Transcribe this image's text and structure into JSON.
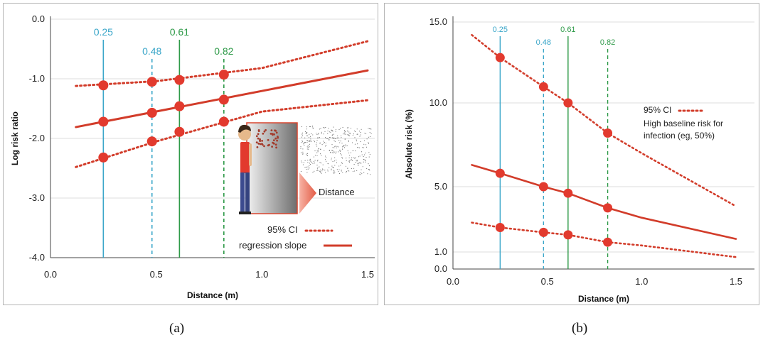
{
  "captions": {
    "a": "(a)",
    "b": "(b)"
  },
  "chart_data": [
    {
      "type": "line",
      "panel": "a",
      "xlabel": "Distance (m)",
      "ylabel": "Log risk ratio",
      "xlim": [
        0,
        1.55
      ],
      "ylim": [
        -4.0,
        0.0
      ],
      "xticks": [
        "0.0",
        "0.5",
        "1.0",
        "1.5"
      ],
      "yticks": [
        "0.0",
        "-1.0",
        "-2.0",
        "-3.0",
        "-4.0"
      ],
      "markers": [
        {
          "value": "0.25",
          "x": 0.25,
          "color": "#3aa6c9",
          "style": "solid"
        },
        {
          "value": "0.48",
          "x": 0.48,
          "color": "#3aa6c9",
          "style": "dashed"
        },
        {
          "value": "0.61",
          "x": 0.61,
          "color": "#2e9a48",
          "style": "solid"
        },
        {
          "value": "0.82",
          "x": 0.82,
          "color": "#2e9a48",
          "style": "dashed"
        }
      ],
      "series": [
        {
          "role": "upper",
          "style": "dotted",
          "x": [
            0.12,
            0.5,
            1.0,
            1.5
          ],
          "y": [
            -1.12,
            -1.04,
            -0.82,
            -0.37
          ]
        },
        {
          "role": "fit",
          "style": "solid",
          "x": [
            0.12,
            1.5
          ],
          "y": [
            -1.81,
            -0.86
          ]
        },
        {
          "role": "lower",
          "style": "dotted",
          "x": [
            0.12,
            0.5,
            1.0,
            1.5
          ],
          "y": [
            -2.48,
            -2.05,
            -1.55,
            -1.36
          ]
        }
      ],
      "points": [
        {
          "x": 0.25,
          "y": -1.11
        },
        {
          "x": 0.48,
          "y": -1.05
        },
        {
          "x": 0.61,
          "y": -1.02
        },
        {
          "x": 0.82,
          "y": -0.93
        },
        {
          "x": 0.25,
          "y": -1.72
        },
        {
          "x": 0.48,
          "y": -1.57
        },
        {
          "x": 0.61,
          "y": -1.46
        },
        {
          "x": 0.82,
          "y": -1.35
        },
        {
          "x": 0.25,
          "y": -2.32
        },
        {
          "x": 0.48,
          "y": -2.05
        },
        {
          "x": 0.61,
          "y": -1.89
        },
        {
          "x": 0.82,
          "y": -1.72
        }
      ],
      "legend": {
        "ci": "95% CI",
        "slope": "regression slope"
      },
      "annotation": "Distance",
      "color": "#d23c2a"
    },
    {
      "type": "line",
      "panel": "b",
      "xlabel": "Distance (m)",
      "ylabel": "Absolute risk  (%)",
      "xlim": [
        0,
        1.55
      ],
      "xticks": [
        "0.0",
        "0.5",
        "1.0",
        "1.5"
      ],
      "yticks": [
        {
          "label": "15.0",
          "value": 15.0
        },
        {
          "label": "10.0",
          "value": 10.0
        },
        {
          "label": "5.0",
          "value": 5.0
        },
        {
          "label": "1.0",
          "value": 1.0
        },
        {
          "label": "0.0",
          "value": 0.0
        }
      ],
      "markers": [
        {
          "value": "0.25",
          "x": 0.25,
          "color": "#3aa6c9",
          "style": "solid"
        },
        {
          "value": "0.48",
          "x": 0.48,
          "color": "#3aa6c9",
          "style": "dashed"
        },
        {
          "value": "0.61",
          "x": 0.61,
          "color": "#2e9a48",
          "style": "solid"
        },
        {
          "value": "0.82",
          "x": 0.82,
          "color": "#2e9a48",
          "style": "dashed"
        }
      ],
      "series": [
        {
          "role": "upper",
          "style": "dotted",
          "x": [
            0.1,
            0.25,
            0.48,
            0.61,
            0.82,
            1.0,
            1.5
          ],
          "y": [
            14.2,
            12.8,
            11.0,
            10.0,
            8.2,
            7.0,
            3.8
          ]
        },
        {
          "role": "fit",
          "style": "solid",
          "x": [
            0.1,
            0.25,
            0.48,
            0.61,
            0.82,
            1.0,
            1.5
          ],
          "y": [
            6.3,
            5.8,
            5.0,
            4.6,
            3.7,
            3.1,
            1.8
          ]
        },
        {
          "role": "lower",
          "style": "dotted",
          "x": [
            0.1,
            0.25,
            0.48,
            0.61,
            0.82,
            1.0,
            1.5
          ],
          "y": [
            2.8,
            2.5,
            2.2,
            2.05,
            1.6,
            1.4,
            0.7
          ]
        }
      ],
      "points": [
        {
          "x": 0.25,
          "y": 12.8
        },
        {
          "x": 0.48,
          "y": 11.0
        },
        {
          "x": 0.61,
          "y": 10.0
        },
        {
          "x": 0.82,
          "y": 8.2
        },
        {
          "x": 0.25,
          "y": 5.8
        },
        {
          "x": 0.48,
          "y": 5.0
        },
        {
          "x": 0.61,
          "y": 4.6
        },
        {
          "x": 0.82,
          "y": 3.7
        },
        {
          "x": 0.25,
          "y": 2.5
        },
        {
          "x": 0.48,
          "y": 2.2
        },
        {
          "x": 0.61,
          "y": 2.05
        },
        {
          "x": 0.82,
          "y": 1.6
        }
      ],
      "legend": {
        "ci": "95% CI",
        "note_line1": "High baseline risk for",
        "note_line2": "infection (eg, 50%)"
      },
      "color": "#d23c2a"
    }
  ]
}
